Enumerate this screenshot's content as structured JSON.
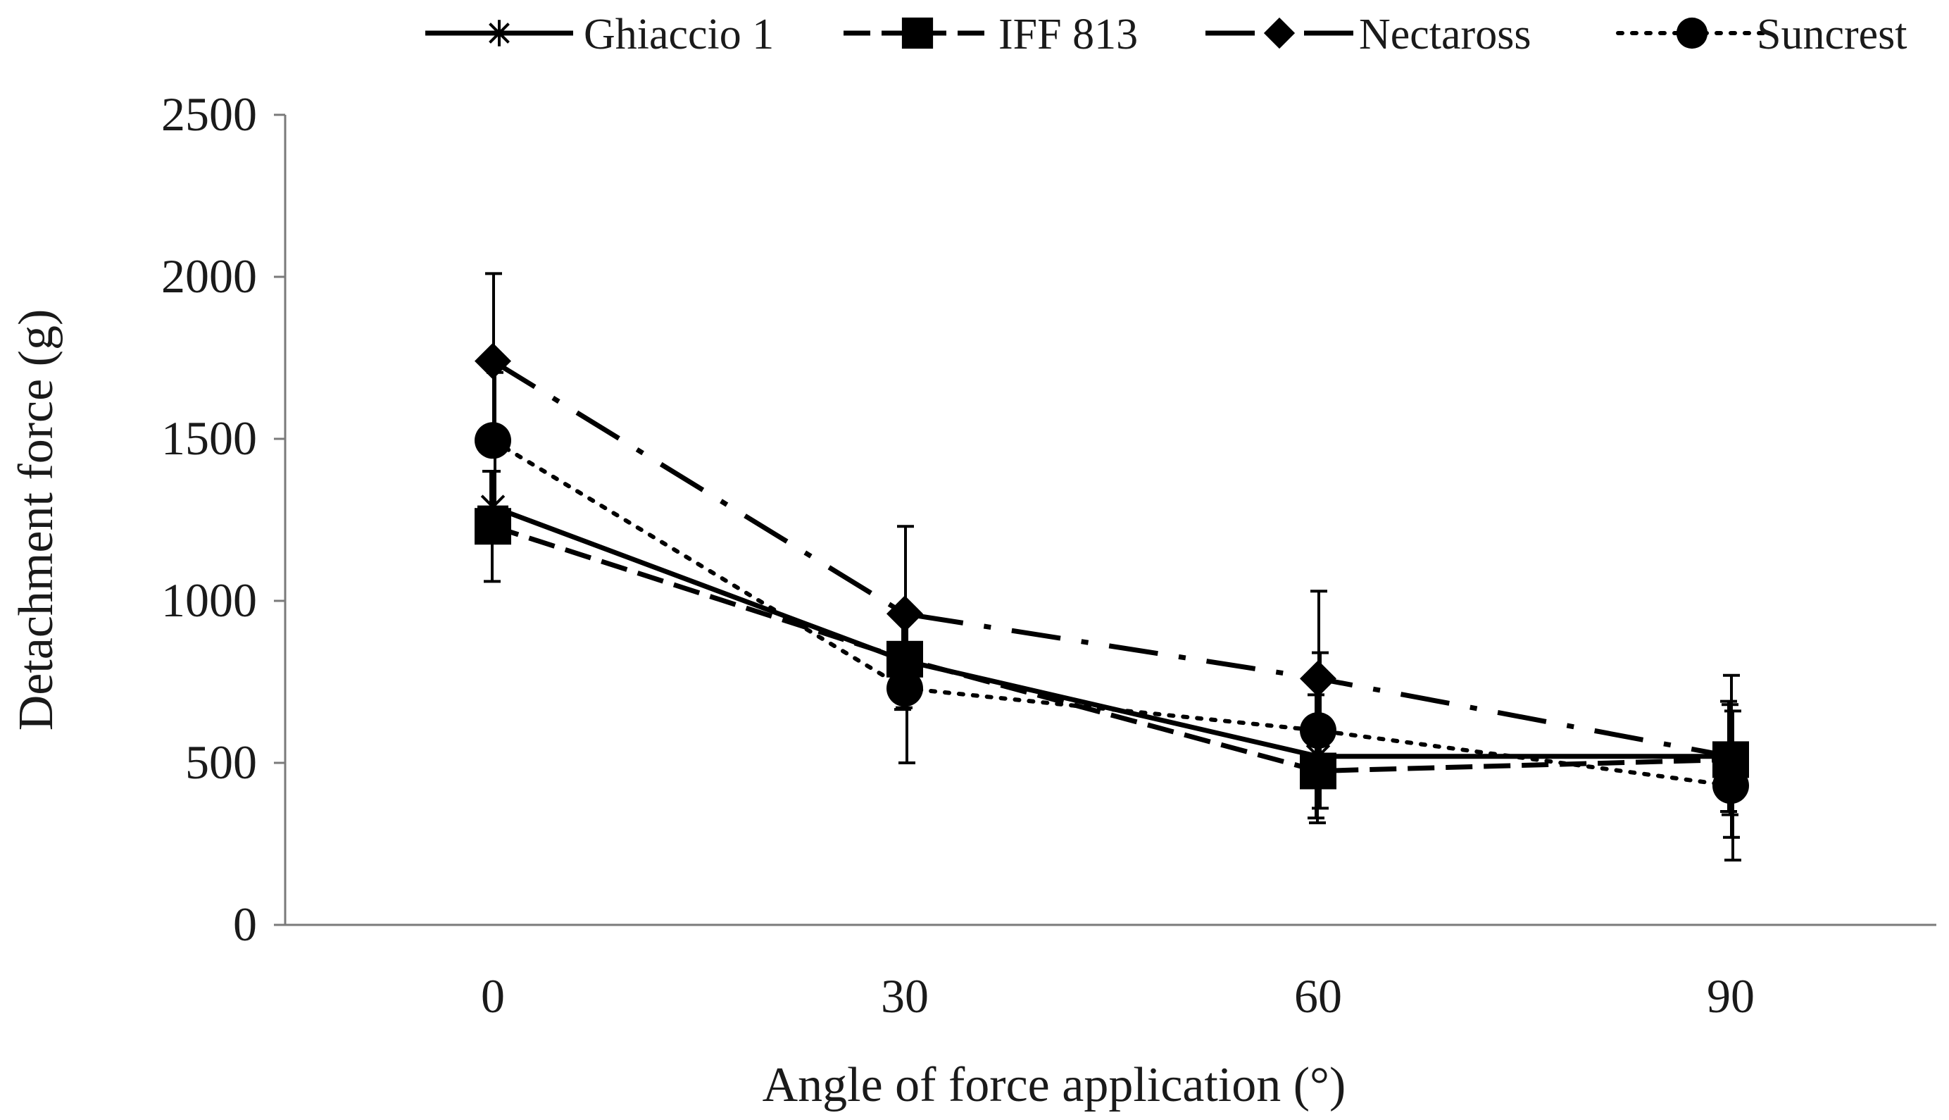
{
  "chart_data": {
    "type": "line",
    "title": "",
    "xlabel": "Angle of force application (°)",
    "ylabel": "Detachment force (g)",
    "categories": [
      "0",
      "30",
      "60",
      "90"
    ],
    "x": [
      0,
      30,
      60,
      90
    ],
    "ylim": [
      0,
      2500
    ],
    "yticks": [
      0,
      500,
      1000,
      1500,
      2000,
      2500
    ],
    "yticklabels": [
      "0",
      "500",
      "1000",
      "1500",
      "2000",
      "2500"
    ],
    "grid": false,
    "legend_position": "top",
    "series": [
      {
        "name": "Ghiaccio 1",
        "marker": "asterisk",
        "line_style": "solid",
        "values": [
          1290,
          815,
          520,
          520
        ],
        "error": [
          110,
          150,
          190,
          170
        ]
      },
      {
        "name": "IFF 813",
        "marker": "square",
        "line_style": "dashed",
        "values": [
          1230,
          820,
          475,
          510
        ],
        "error": [
          170,
          150,
          160,
          170
        ]
      },
      {
        "name": "Nectaross",
        "marker": "diamond",
        "line_style": "dash-dot",
        "values": [
          1740,
          960,
          760,
          520
        ],
        "error": [
          270,
          270,
          270,
          250
        ]
      },
      {
        "name": "Suncrest",
        "marker": "circle",
        "line_style": "dotted",
        "values": [
          1495,
          730,
          600,
          430
        ],
        "error": [
          210,
          230,
          240,
          230
        ]
      }
    ]
  }
}
